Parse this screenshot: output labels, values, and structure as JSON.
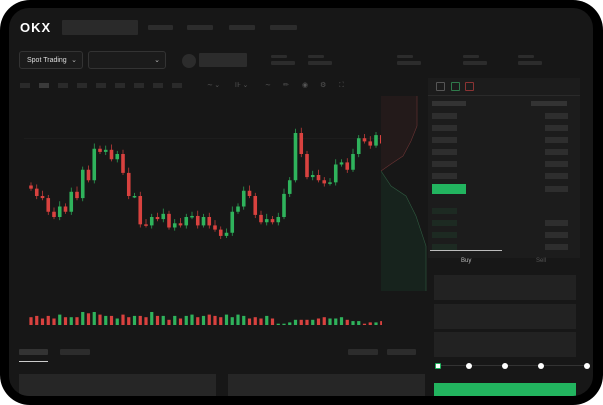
{
  "header": {
    "logo": "OKX",
    "nav_items": 4
  },
  "toolbar": {
    "market_select": "Spot Trading",
    "pair_select": ""
  },
  "colors": {
    "up": "#2fb35c",
    "down": "#d9423f",
    "accent": "#22b45f",
    "background": "#171717"
  },
  "orderbook": {
    "view_icons": [
      "orderbook-both-icon",
      "orderbook-bids-icon",
      "orderbook-asks-icon"
    ]
  },
  "trade": {
    "tabs": [
      "Buy",
      "Sell"
    ],
    "active_tab": "Buy",
    "slider_fraction": 0
  },
  "chart": {
    "type": "candlestick",
    "closes": [
      47,
      40,
      38,
      25,
      20,
      30,
      25,
      44,
      38,
      65,
      55,
      85,
      82,
      84,
      75,
      80,
      62,
      40,
      40,
      13,
      12,
      20,
      18,
      23,
      10,
      14,
      12,
      20,
      21,
      12,
      20,
      12,
      8,
      2,
      5,
      25,
      30,
      45,
      40,
      22,
      15,
      18,
      15,
      20,
      42,
      55,
      100,
      80,
      58,
      60,
      55,
      52,
      53,
      70,
      72,
      65,
      80,
      95,
      92,
      88,
      98,
      90,
      95
    ],
    "volumes": [
      6,
      7,
      5,
      7,
      5,
      8,
      6,
      6,
      6,
      10,
      9,
      10,
      8,
      7,
      7,
      5,
      8,
      6,
      7,
      7,
      6,
      10,
      7,
      7,
      4,
      7,
      5,
      7,
      8,
      6,
      7,
      8,
      7,
      6,
      8,
      6,
      8,
      7,
      5,
      6,
      5,
      7,
      5,
      1,
      1,
      2,
      4,
      4,
      4,
      4,
      5,
      6,
      5,
      5,
      6,
      4,
      3,
      3,
      1,
      2,
      2,
      3,
      2
    ]
  }
}
